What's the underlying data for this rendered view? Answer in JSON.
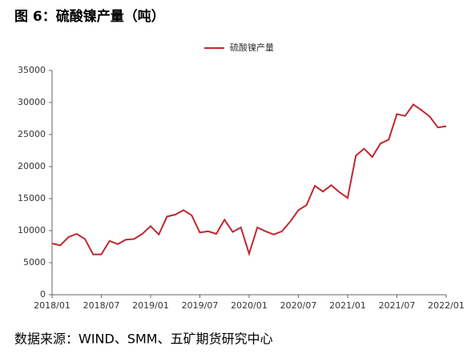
{
  "chart_data": {
    "type": "line",
    "title": "图 6：硫酸镍产量（吨）",
    "source": "数据来源：WIND、SMM、五矿期货研究中心",
    "categories": [
      "2018/01",
      null,
      null,
      null,
      null,
      null,
      "2018/07",
      null,
      null,
      null,
      null,
      null,
      "2019/01",
      null,
      null,
      null,
      null,
      null,
      "2019/07",
      null,
      null,
      null,
      null,
      null,
      "2020/01",
      null,
      null,
      null,
      null,
      null,
      "2020/07",
      null,
      null,
      null,
      null,
      null,
      "2021/01",
      null,
      null,
      null,
      null,
      null,
      "2021/07",
      null,
      null,
      null,
      null,
      null,
      "2022/01"
    ],
    "series": [
      {
        "name": "硫酸镍产量",
        "color": "#c0282f",
        "values": [
          8000,
          7700,
          9000,
          9500,
          8700,
          6300,
          6300,
          8400,
          7900,
          8600,
          8700,
          9500,
          10700,
          9400,
          12200,
          12500,
          13200,
          12400,
          9700,
          9900,
          9500,
          11700,
          9800,
          10500,
          6400,
          10500,
          9900,
          9400,
          9900,
          11400,
          13200,
          14000,
          17000,
          16100,
          17100,
          16000,
          15100,
          21700,
          22800,
          21500,
          23600,
          24200,
          28200,
          27900,
          29700,
          28800,
          27800,
          26100,
          26300
        ]
      }
    ],
    "ylim": [
      0,
      35000
    ],
    "yticks": [
      0,
      5000,
      10000,
      15000,
      20000,
      25000,
      30000,
      35000
    ],
    "grid": false,
    "legend": "top"
  }
}
